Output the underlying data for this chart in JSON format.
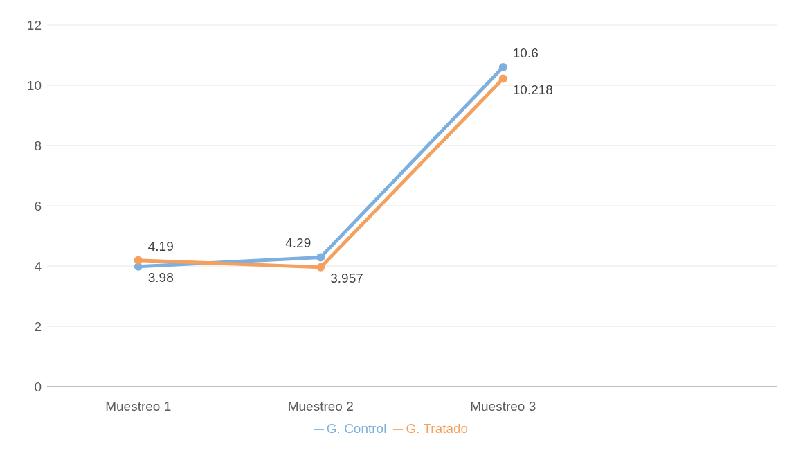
{
  "chart_data": {
    "type": "line",
    "categories": [
      "Muestreo 1",
      "Muestreo 2",
      "Muestreo 3",
      null
    ],
    "series": [
      {
        "name": "G. Control",
        "color": "#7dafdf",
        "values": [
          3.98,
          4.29,
          10.6,
          null
        ]
      },
      {
        "name": "G. Tratado",
        "color": "#f4a15f",
        "values": [
          4.19,
          3.957,
          10.218,
          null
        ]
      }
    ],
    "ylim": [
      0,
      12
    ],
    "yticks": [
      0,
      2,
      4,
      6,
      8,
      10,
      12
    ],
    "grid": "y",
    "legend": "bottom",
    "marker": "circle",
    "line_style": "solid",
    "data_labels": true
  }
}
